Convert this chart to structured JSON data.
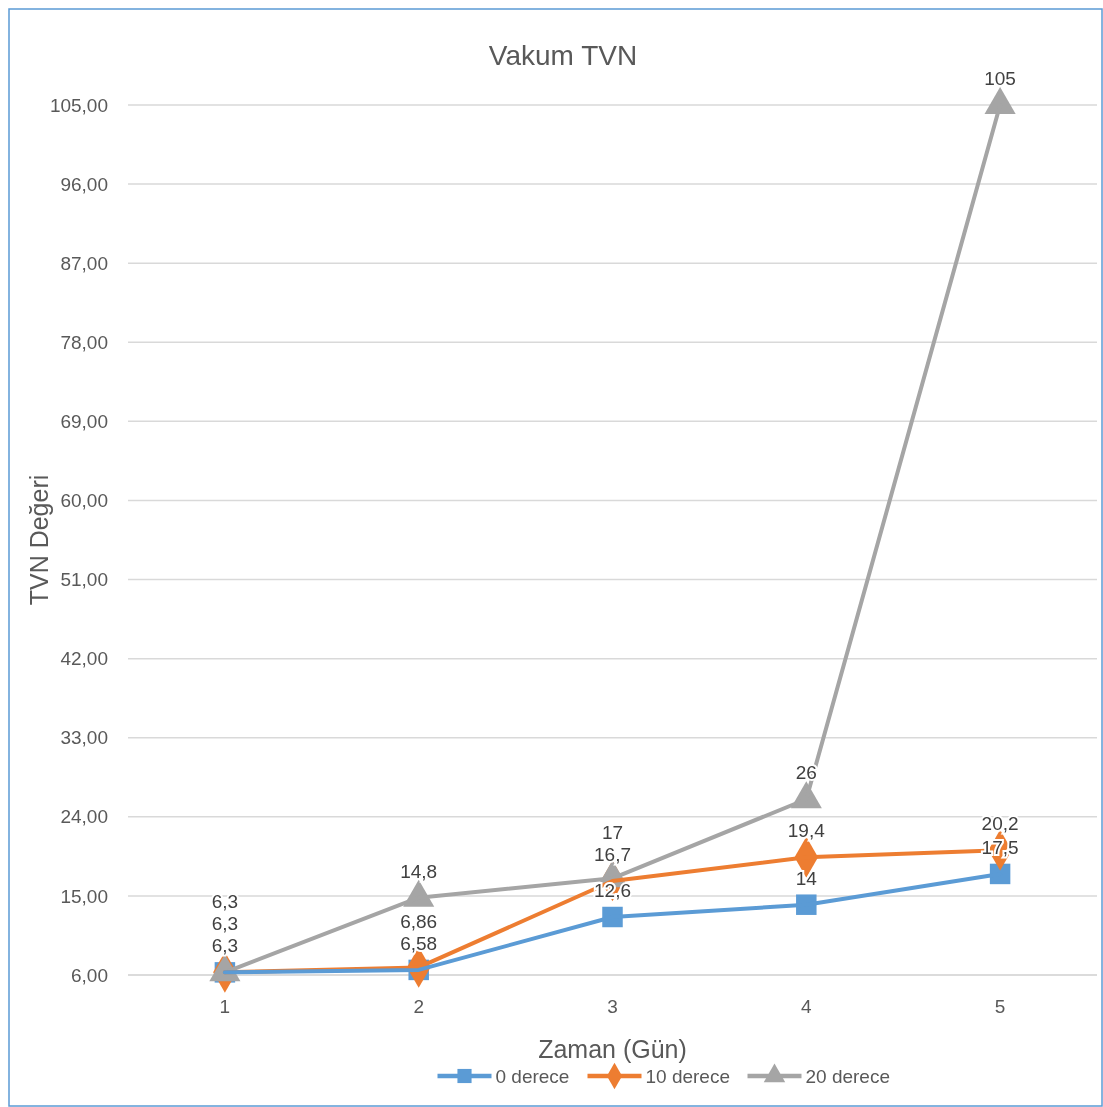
{
  "chart_data": {
    "type": "line",
    "title": "Vakum TVN",
    "xlabel": "Zaman (Gün)",
    "ylabel": "TVN Değeri",
    "categories": [
      "1",
      "2",
      "3",
      "4",
      "5"
    ],
    "ylim": [
      6,
      105
    ],
    "yticks": [
      {
        "value": 6,
        "label": "6,00"
      },
      {
        "value": 15,
        "label": "15,00"
      },
      {
        "value": 24,
        "label": "24,00"
      },
      {
        "value": 33,
        "label": "33,00"
      },
      {
        "value": 42,
        "label": "42,00"
      },
      {
        "value": 51,
        "label": "51,00"
      },
      {
        "value": 60,
        "label": "60,00"
      },
      {
        "value": 69,
        "label": "69,00"
      },
      {
        "value": 78,
        "label": "78,00"
      },
      {
        "value": 87,
        "label": "87,00"
      },
      {
        "value": 96,
        "label": "96,00"
      },
      {
        "value": 105,
        "label": "105,00"
      }
    ],
    "grid": "y",
    "legend": "bottom",
    "line_style": "solid",
    "series": [
      {
        "name": "0 derece",
        "color": "#5b9bd5",
        "marker": "square",
        "values": [
          6.3,
          6.58,
          12.6,
          14,
          17.5
        ],
        "value_labels": [
          "6,3",
          "6,58",
          "12,6",
          "14",
          "17,5"
        ]
      },
      {
        "name": "10 derece",
        "color": "#ed7d31",
        "marker": "diamond",
        "values": [
          6.3,
          6.86,
          16.7,
          19.4,
          20.2
        ],
        "value_labels": [
          "6,3",
          "6,86",
          "16,7",
          "19,4",
          "20,2"
        ]
      },
      {
        "name": "20 derece",
        "color": "#a5a5a5",
        "marker": "triangle",
        "values": [
          6.3,
          14.8,
          17,
          26,
          105
        ],
        "value_labels": [
          "6,3",
          "14,8",
          "17",
          "26",
          "105"
        ]
      }
    ]
  }
}
